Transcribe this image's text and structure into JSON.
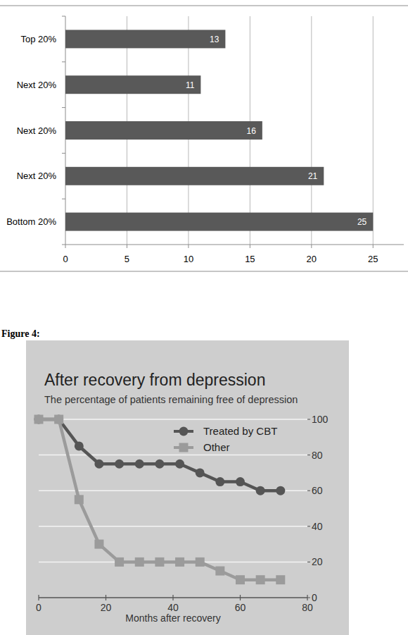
{
  "caption": "Figure 4:",
  "chart_data": [
    {
      "type": "bar",
      "orientation": "horizontal",
      "categories": [
        "Top 20%",
        "Next 20%",
        "Next 20%",
        "Next 20%",
        "Bottom 20%"
      ],
      "values": [
        13,
        11,
        16,
        21,
        25
      ],
      "color": "#595959",
      "xlim": [
        0,
        27.5
      ],
      "xticks": [
        0,
        5,
        10,
        15,
        20,
        25
      ],
      "grid": true,
      "data_labels": true
    },
    {
      "type": "line",
      "title": "After recovery from depression",
      "subtitle": "The percentage of patients remaining free of depression",
      "xlabel": "Months after recovery",
      "x": [
        0,
        6,
        12,
        18,
        24,
        30,
        36,
        42,
        48,
        54,
        60,
        66,
        72
      ],
      "series": [
        {
          "name": "Treated by CBT",
          "color": "#555555",
          "marker": "circle",
          "values": [
            100,
            100,
            85,
            75,
            75,
            75,
            75,
            75,
            70,
            65,
            65,
            60,
            60
          ]
        },
        {
          "name": "Other",
          "color": "#9b9b9b",
          "marker": "square",
          "values": [
            100,
            100,
            55,
            30,
            20,
            20,
            20,
            20,
            20,
            15,
            10,
            10,
            10
          ]
        }
      ],
      "xlim": [
        0,
        80
      ],
      "xticks": [
        0,
        20,
        40,
        60,
        80
      ],
      "ylim": [
        0,
        100
      ],
      "yticks": [
        0,
        20,
        40,
        60,
        80,
        100
      ],
      "grid": true,
      "legend": "top-right"
    }
  ]
}
